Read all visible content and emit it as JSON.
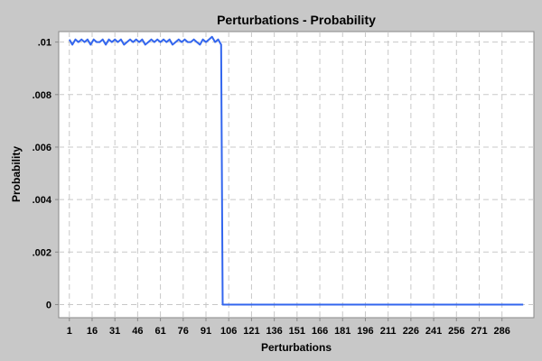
{
  "chart_data": {
    "type": "line",
    "title": "Perturbations - Probability",
    "xlabel": "Perturbations",
    "ylabel": "Probability",
    "xlim": [
      -6,
      307
    ],
    "ylim": [
      -0.0005,
      0.0104
    ],
    "x_ticks": [
      1,
      16,
      31,
      46,
      61,
      76,
      91,
      106,
      121,
      136,
      151,
      166,
      181,
      196,
      211,
      226,
      241,
      256,
      271,
      286
    ],
    "y_ticks": [
      {
        "value": 0.01,
        "label": ".01"
      },
      {
        "value": 0.008,
        "label": ".008"
      },
      {
        "value": 0.006,
        "label": ".006"
      },
      {
        "value": 0.004,
        "label": ".004"
      },
      {
        "value": 0.002,
        "label": ".002"
      },
      {
        "value": 0,
        "label": "0"
      }
    ],
    "grid": true,
    "series": [
      {
        "color": "#3366ee",
        "points": [
          [
            1,
            0.0101
          ],
          [
            3,
            0.0099
          ],
          [
            5,
            0.0101
          ],
          [
            7,
            0.01
          ],
          [
            9,
            0.0101
          ],
          [
            11,
            0.01
          ],
          [
            13,
            0.0101
          ],
          [
            15,
            0.0099
          ],
          [
            17,
            0.0101
          ],
          [
            19,
            0.01
          ],
          [
            21,
            0.01
          ],
          [
            23,
            0.0101
          ],
          [
            25,
            0.0099
          ],
          [
            27,
            0.0101
          ],
          [
            29,
            0.01
          ],
          [
            31,
            0.0101
          ],
          [
            33,
            0.01
          ],
          [
            35,
            0.0101
          ],
          [
            37,
            0.0099
          ],
          [
            39,
            0.01
          ],
          [
            41,
            0.0101
          ],
          [
            43,
            0.01
          ],
          [
            45,
            0.0101
          ],
          [
            47,
            0.01
          ],
          [
            49,
            0.0101
          ],
          [
            51,
            0.0099
          ],
          [
            53,
            0.01
          ],
          [
            55,
            0.0101
          ],
          [
            57,
            0.01
          ],
          [
            59,
            0.0101
          ],
          [
            61,
            0.01
          ],
          [
            63,
            0.0101
          ],
          [
            65,
            0.01
          ],
          [
            67,
            0.0101
          ],
          [
            69,
            0.0099
          ],
          [
            71,
            0.01
          ],
          [
            73,
            0.0101
          ],
          [
            75,
            0.01
          ],
          [
            77,
            0.0101
          ],
          [
            79,
            0.01
          ],
          [
            81,
            0.01
          ],
          [
            83,
            0.0101
          ],
          [
            85,
            0.01
          ],
          [
            87,
            0.0099
          ],
          [
            89,
            0.0101
          ],
          [
            91,
            0.01
          ],
          [
            93,
            0.0101
          ],
          [
            95,
            0.0102
          ],
          [
            97,
            0.01
          ],
          [
            99,
            0.0101
          ],
          [
            101,
            0.0099
          ],
          [
            102,
            0.0
          ],
          [
            130,
            0.0
          ],
          [
            160,
            0.0
          ],
          [
            200,
            0.0
          ],
          [
            240,
            0.0
          ],
          [
            280,
            0.0
          ],
          [
            300,
            0.0
          ]
        ]
      }
    ]
  }
}
